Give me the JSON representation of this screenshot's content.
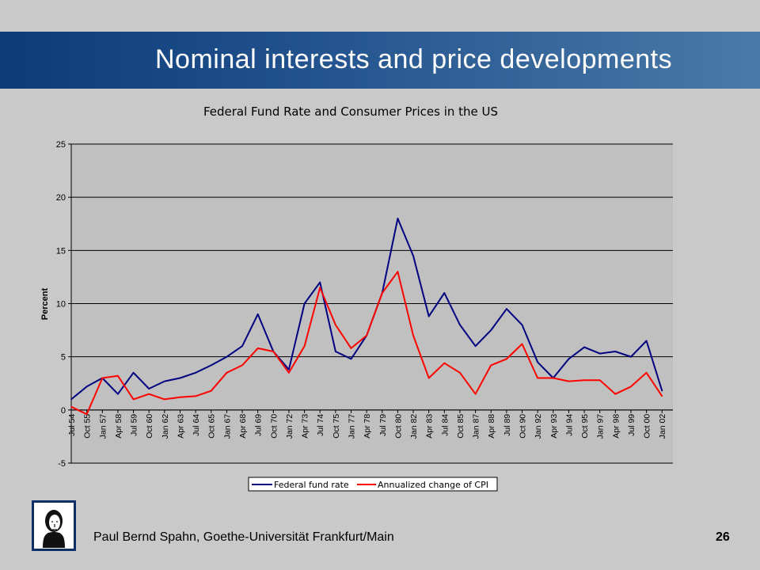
{
  "slide": {
    "title": "Nominal interests and price developments",
    "footer": "Paul Bernd Spahn, Goethe-Universität Frankfurt/Main",
    "page_number": "26"
  },
  "colors": {
    "title_bar_left": "#0d3b77",
    "title_bar_right": "#4a7aa7",
    "plot_area": "#c0c0c0",
    "fed_series": "#000080",
    "cpi_series": "#ff0000"
  },
  "icons": {
    "logo": "goethe-portrait-icon"
  },
  "chart_data": {
    "type": "line",
    "title": "Federal Fund Rate and Consumer Prices in the US",
    "ylabel": "Percent",
    "xlabel": "",
    "ylim": [
      -5,
      25
    ],
    "yticks": [
      -5,
      0,
      5,
      10,
      15,
      20,
      25
    ],
    "grid": true,
    "legend": "bottom-center",
    "x": [
      "Jul 54",
      "Oct 55",
      "Jan 57",
      "Apr 58",
      "Jul 59",
      "Oct 60",
      "Jan 62",
      "Apr 63",
      "Jul 64",
      "Oct 65",
      "Jan 67",
      "Apr 68",
      "Jul 69",
      "Oct 70",
      "Jan 72",
      "Apr 73",
      "Jul 74",
      "Oct 75",
      "Jan 77",
      "Apr 78",
      "Jul 79",
      "Oct 80",
      "Jan 82",
      "Apr 83",
      "Jul 84",
      "Oct 85",
      "Jan 87",
      "Apr 88",
      "Jul 89",
      "Oct 90",
      "Jan 92",
      "Apr 93",
      "Jul 94",
      "Oct 95",
      "Jan 97",
      "Apr 98",
      "Jul 99",
      "Oct 00",
      "Jan 02"
    ],
    "series": [
      {
        "name": "Federal fund rate",
        "color": "#000080",
        "values": [
          1.0,
          2.2,
          3.0,
          1.5,
          3.5,
          2.0,
          2.7,
          3.0,
          3.5,
          4.2,
          5.0,
          6.0,
          9.0,
          5.5,
          3.8,
          10.0,
          12.0,
          5.5,
          4.8,
          7.0,
          11.0,
          18.0,
          14.5,
          8.8,
          11.0,
          8.0,
          6.0,
          7.5,
          9.5,
          8.0,
          4.5,
          3.0,
          4.8,
          5.9,
          5.3,
          5.5,
          5.0,
          6.5,
          1.8
        ]
      },
      {
        "name": "Annualized change of CPI",
        "color": "#ff0000",
        "values": [
          0.3,
          -0.4,
          3.0,
          3.2,
          1.0,
          1.5,
          1.0,
          1.2,
          1.3,
          1.8,
          3.5,
          4.2,
          5.8,
          5.5,
          3.5,
          6.0,
          11.5,
          8.0,
          5.8,
          7.0,
          11.0,
          13.0,
          7.0,
          3.0,
          4.4,
          3.5,
          1.5,
          4.2,
          4.8,
          6.2,
          3.0,
          3.0,
          2.7,
          2.8,
          2.8,
          1.5,
          2.2,
          3.5,
          1.3
        ]
      }
    ]
  }
}
